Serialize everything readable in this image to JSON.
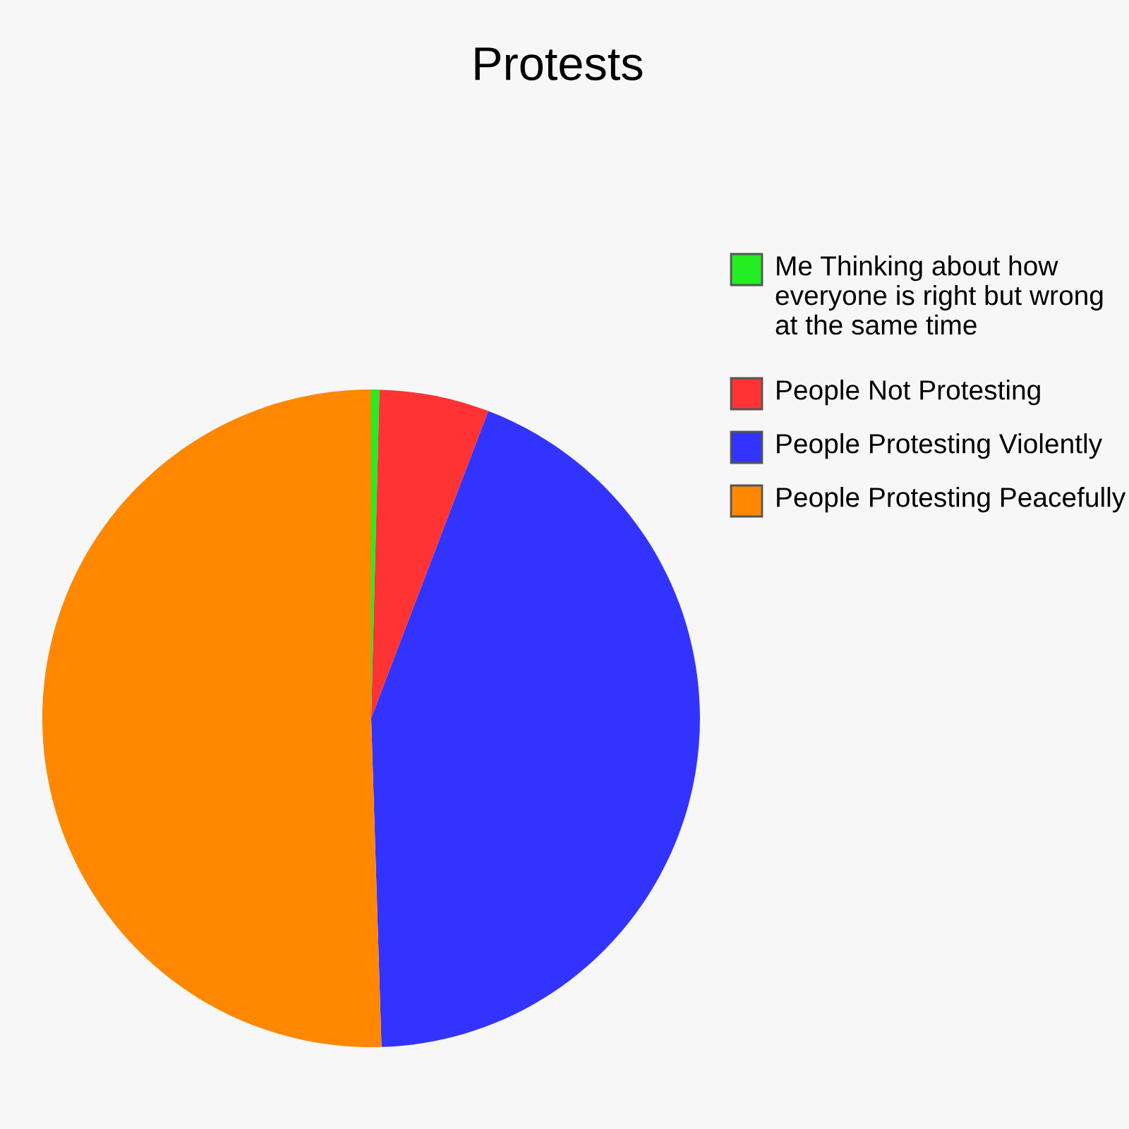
{
  "chart_data": {
    "type": "pie",
    "title": "Protests",
    "categories": [
      "Me Thinking about how everyone is right but wrong at the same time",
      "People Not Protesting",
      "People Protesting Violently",
      "People Protesting Peacefully"
    ],
    "values": [
      0.4,
      5.4,
      43.7,
      50.5
    ],
    "colors": [
      "#22ee22",
      "#ff3333",
      "#3333ff",
      "#ff8800"
    ],
    "legend": "right"
  }
}
